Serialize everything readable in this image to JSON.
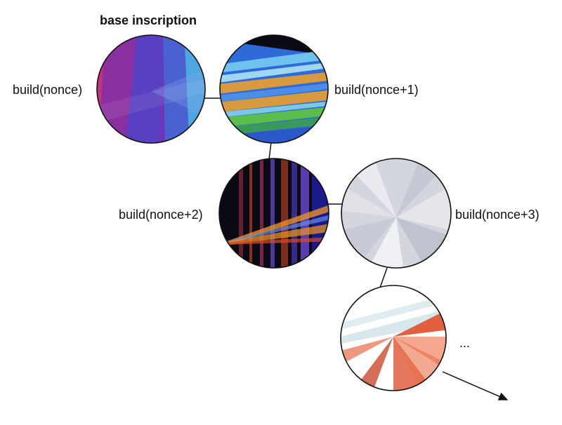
{
  "diagram": {
    "title": "base inscription",
    "nodes": [
      {
        "id": "n0",
        "label": "build(nonce)",
        "palette": [
          "#6d35b8",
          "#8a2fa0",
          "#5a3fc2",
          "#3f78d4",
          "#4fa6e0",
          "#c0347a"
        ]
      },
      {
        "id": "n1",
        "label": "build(nonce+1)",
        "palette": [
          "#2f6bd8",
          "#4a8ee6",
          "#d89a3c",
          "#5bbd4a",
          "#7ac7e8",
          "#0b0b14"
        ]
      },
      {
        "id": "n2",
        "label": "build(nonce+2)",
        "palette": [
          "#0a0a12",
          "#d84a2a",
          "#6a4ad8",
          "#e8902a",
          "#3a2a8a",
          "#1a1a6a"
        ]
      },
      {
        "id": "n3",
        "label": "build(nonce+3)",
        "palette": [
          "#d2d4dc",
          "#e4e6ec",
          "#c6c9d3",
          "#f0f1f4",
          "#b8bcc8"
        ]
      },
      {
        "id": "n4",
        "label": "...",
        "palette": [
          "#ffffff",
          "#e06040",
          "#d8e8ec",
          "#c84a30",
          "#f08060"
        ]
      }
    ],
    "edges": [
      [
        "n0",
        "n1"
      ],
      [
        "n1",
        "n2"
      ],
      [
        "n2",
        "n3"
      ],
      [
        "n3",
        "n4"
      ]
    ]
  }
}
